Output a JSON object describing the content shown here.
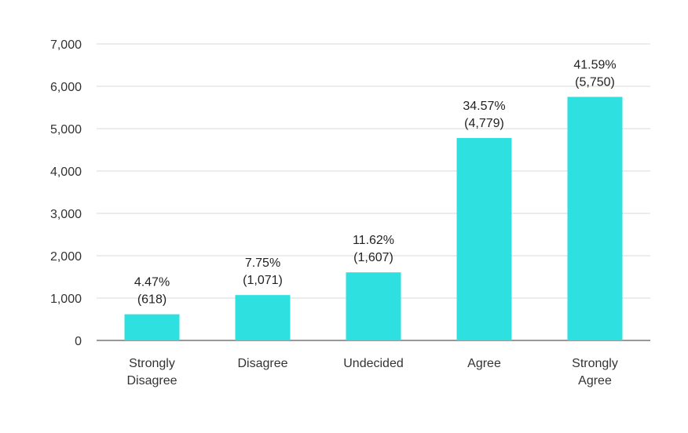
{
  "chart_data": {
    "type": "bar",
    "title": "",
    "xlabel": "",
    "ylabel": "",
    "categories": [
      [
        "Strongly",
        "Disagree"
      ],
      [
        "Disagree"
      ],
      [
        "Undecided"
      ],
      [
        "Agree"
      ],
      [
        "Strongly",
        "Agree"
      ]
    ],
    "values": [
      618,
      1071,
      1607,
      4779,
      5750
    ],
    "value_labels": [
      [
        "4.47%",
        "(618)"
      ],
      [
        "7.75%",
        "(1,071)"
      ],
      [
        "11.62%",
        "(1,607)"
      ],
      [
        "34.57%",
        "(4,779)"
      ],
      [
        "41.59%",
        "(5,750)"
      ]
    ],
    "ylim": [
      0,
      7000
    ],
    "yticks": [
      0,
      1000,
      2000,
      3000,
      4000,
      5000,
      6000,
      7000
    ],
    "ytick_labels": [
      "0",
      "1,000",
      "2,000",
      "3,000",
      "4,000",
      "5,000",
      "6,000",
      "7,000"
    ],
    "grid": true,
    "legend": "none",
    "bar_color": "#2ee0e0"
  }
}
